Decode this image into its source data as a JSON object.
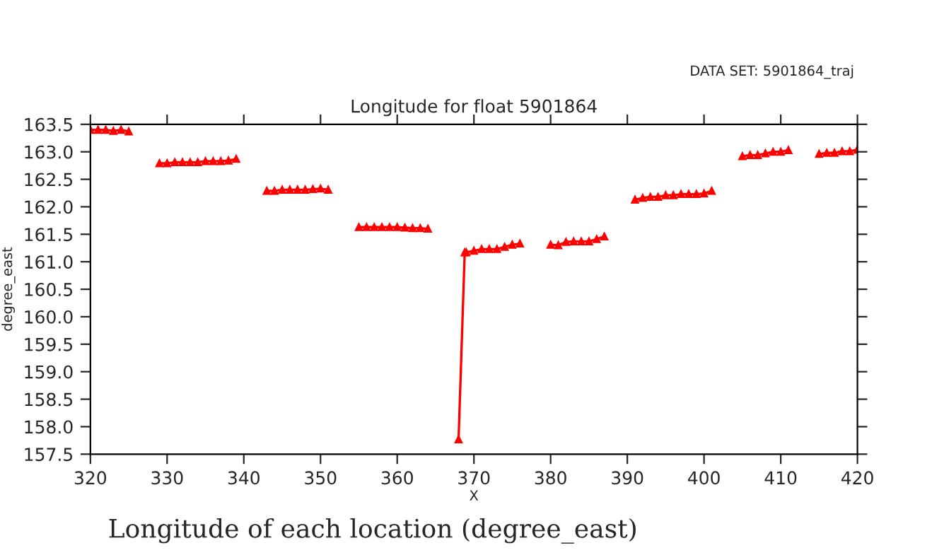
{
  "chart_data": {
    "type": "line",
    "title": "Longitude for float 5901864",
    "xlabel": "X",
    "ylabel": "degree_east",
    "annotations": [
      "DATA SET: 5901864_traj",
      "Longitude of each location (degree_east)"
    ],
    "series": [
      {
        "color": "#ff0000",
        "x": [
          320,
          321,
          322,
          323,
          324,
          325,
          327,
          329,
          330,
          331,
          332,
          333,
          334,
          335,
          336,
          337,
          338,
          339,
          341,
          343,
          344,
          345,
          346,
          347,
          348,
          349,
          350,
          351,
          353,
          355,
          356,
          357,
          358,
          359,
          360,
          361,
          362,
          363,
          364,
          366,
          368,
          368.8,
          369,
          370,
          371,
          372,
          373,
          374,
          375,
          376,
          378,
          380,
          381,
          382,
          383,
          384,
          385,
          386,
          387,
          389,
          391,
          392,
          393,
          394,
          395,
          396,
          397,
          398,
          399,
          400,
          401,
          403,
          405,
          406,
          407,
          408,
          409,
          410,
          411,
          413,
          415,
          416,
          417,
          418,
          419,
          420
        ],
        "values": [
          163.4,
          163.4,
          163.4,
          163.38,
          163.4,
          163.37,
          null,
          162.79,
          162.79,
          162.81,
          162.81,
          162.81,
          162.81,
          162.83,
          162.83,
          162.83,
          162.84,
          162.87,
          null,
          162.29,
          162.29,
          162.31,
          162.31,
          162.31,
          162.31,
          162.32,
          162.33,
          162.31,
          null,
          161.63,
          161.63,
          161.63,
          161.63,
          161.63,
          161.63,
          161.62,
          161.61,
          161.61,
          161.6,
          null,
          157.77,
          161.17,
          161.17,
          161.2,
          161.23,
          161.23,
          161.23,
          161.27,
          161.31,
          161.33,
          null,
          161.31,
          161.3,
          161.36,
          161.37,
          161.37,
          161.37,
          161.41,
          161.46,
          null,
          162.13,
          162.16,
          162.18,
          162.18,
          162.21,
          162.21,
          162.23,
          162.23,
          162.23,
          162.24,
          162.29,
          null,
          162.92,
          162.94,
          162.94,
          162.97,
          163.0,
          163.0,
          163.03,
          null,
          162.96,
          162.98,
          162.98,
          163.01,
          163.01,
          163.04
        ]
      }
    ],
    "xlim": [
      320,
      420
    ],
    "xticks": [
      320,
      330,
      340,
      350,
      360,
      370,
      380,
      390,
      400,
      410,
      420
    ],
    "ylim": [
      157.5,
      163.5
    ],
    "yticks": [
      {
        "value": 157.5,
        "label": "157.5"
      },
      {
        "value": 158,
        "label": "158.0"
      },
      {
        "value": 158.5,
        "label": "158.5"
      },
      {
        "value": 159,
        "label": "159.0"
      },
      {
        "value": 159.5,
        "label": "159.5"
      },
      {
        "value": 160,
        "label": "160.0"
      },
      {
        "value": 160.5,
        "label": "160.5"
      },
      {
        "value": 161,
        "label": "161.0"
      },
      {
        "value": 161.5,
        "label": "161.5"
      },
      {
        "value": 162,
        "label": "162.0"
      },
      {
        "value": 162.5,
        "label": "162.5"
      },
      {
        "value": 163,
        "label": "163.0"
      },
      {
        "value": 163.5,
        "label": "163.5"
      }
    ],
    "marker": "triangle",
    "line_style": "solid",
    "grid": false,
    "legend": false
  }
}
